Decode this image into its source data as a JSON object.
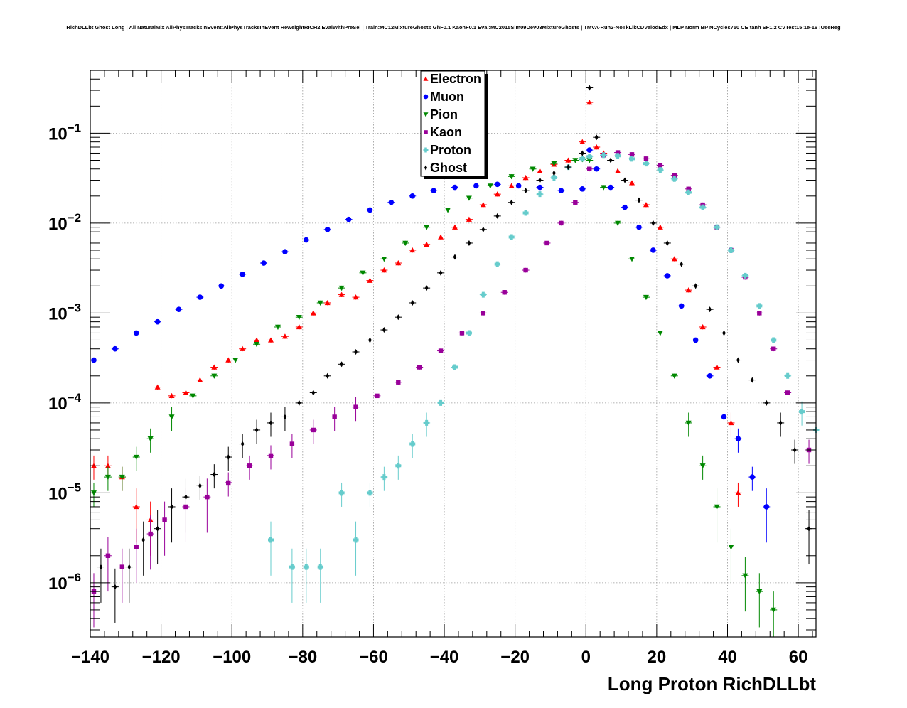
{
  "title": "RichDLLbt Ghost Long | All NaturalMix AllPhysTracksInEvent:AllPhysTracksInEvent ReweightRICH2 EvalWithPreSel | Train:MC12MixtureGhosts GhF0.1 KaonF0.1 Eval:MC2015Sim09Dev03MixtureGhosts | TMVA-Run2-NoTkLikCDVelodEdx | MLP Norm BP NCycles750 CE tanh SF1.2 CVTest15:1e-16 !UseReg",
  "chart_data": {
    "type": "scatter",
    "xlabel": "Long Proton RichDLLbt",
    "ylabel": "",
    "xlim": [
      -140,
      65
    ],
    "ylim": [
      2.5e-07,
      0.5
    ],
    "yscale": "log",
    "grid": true,
    "legend_position": "top-center",
    "x_ticks": [
      -140,
      -120,
      -100,
      -80,
      -60,
      -40,
      -20,
      0,
      20,
      40,
      60
    ],
    "x_tick_labels": [
      "−140",
      "−120",
      "−100",
      "−80",
      "−60",
      "−40",
      "−20",
      "0",
      "20",
      "40",
      "60"
    ],
    "y_ticks": [
      1e-06,
      1e-05,
      0.0001,
      0.001,
      0.01,
      0.1
    ],
    "y_tick_bases": [
      "10",
      "10",
      "10",
      "10",
      "10",
      "10"
    ],
    "y_tick_exponents": [
      "−6",
      "−5",
      "−4",
      "−3",
      "−2",
      "−1"
    ],
    "series": [
      {
        "name": "Electron",
        "color": "#ff0000",
        "marker": "triangle-up",
        "x": [
          -139,
          -135,
          -131,
          -127,
          -123,
          -121,
          -117,
          -113,
          -109,
          -105,
          -101,
          -97,
          -93,
          -89,
          -85,
          -81,
          -77,
          -73,
          -69,
          -65,
          -61,
          -57,
          -53,
          -49,
          -45,
          -41,
          -37,
          -33,
          -29,
          -25,
          -21,
          -17,
          -13,
          -9,
          -5,
          -1,
          1,
          3,
          5,
          9,
          13,
          17,
          21,
          25,
          29,
          33,
          37,
          41,
          43
        ],
        "y": [
          2e-05,
          2e-05,
          1.5e-05,
          7e-06,
          5e-06,
          0.00015,
          0.00012,
          0.00013,
          0.00018,
          0.00025,
          0.0003,
          0.0004,
          0.0005,
          0.0005,
          0.00055,
          0.0007,
          0.001,
          0.0013,
          0.0016,
          0.0015,
          0.0023,
          0.003,
          0.0036,
          0.005,
          0.0058,
          0.007,
          0.009,
          0.011,
          0.016,
          0.021,
          0.026,
          0.032,
          0.038,
          0.045,
          0.05,
          0.08,
          0.22,
          0.07,
          0.06,
          0.038,
          0.028,
          0.016,
          0.009,
          0.004,
          0.0018,
          0.0007,
          0.00025,
          6e-05,
          1e-05
        ]
      },
      {
        "name": "Muon",
        "color": "#0000ff",
        "marker": "circle",
        "x": [
          -139,
          -133,
          -127,
          -121,
          -115,
          -109,
          -103,
          -97,
          -91,
          -85,
          -79,
          -73,
          -67,
          -61,
          -55,
          -49,
          -43,
          -37,
          -31,
          -25,
          -19,
          -13,
          -7,
          -1,
          1,
          3,
          7,
          11,
          15,
          19,
          23,
          27,
          31,
          35,
          39,
          43,
          47,
          51
        ],
        "y": [
          0.0003,
          0.0004,
          0.0006,
          0.0008,
          0.0011,
          0.0015,
          0.002,
          0.0027,
          0.0036,
          0.0048,
          0.0065,
          0.0085,
          0.011,
          0.014,
          0.017,
          0.02,
          0.023,
          0.025,
          0.026,
          0.027,
          0.026,
          0.025,
          0.023,
          0.024,
          0.065,
          0.04,
          0.025,
          0.015,
          0.009,
          0.005,
          0.0026,
          0.0012,
          0.0005,
          0.0002,
          7e-05,
          4e-05,
          1.5e-05,
          7e-06
        ]
      },
      {
        "name": "Pion",
        "color": "#008800",
        "marker": "triangle-down",
        "x": [
          -139,
          -135,
          -131,
          -127,
          -123,
          -117,
          -111,
          -105,
          -99,
          -93,
          -87,
          -81,
          -75,
          -69,
          -63,
          -57,
          -51,
          -45,
          -39,
          -33,
          -27,
          -21,
          -15,
          -9,
          -3,
          -1,
          1,
          5,
          9,
          13,
          17,
          21,
          25,
          29,
          33,
          37,
          41,
          45,
          49,
          53
        ],
        "y": [
          1e-05,
          1.5e-05,
          1.5e-05,
          2.5e-05,
          4e-05,
          7e-05,
          0.00012,
          0.0002,
          0.0003,
          0.00045,
          0.0007,
          0.0009,
          0.0013,
          0.0019,
          0.0028,
          0.004,
          0.006,
          0.009,
          0.014,
          0.019,
          0.026,
          0.033,
          0.04,
          0.046,
          0.05,
          0.051,
          0.05,
          0.025,
          0.01,
          0.004,
          0.0015,
          0.0006,
          0.0002,
          6e-05,
          2e-05,
          7e-06,
          2.5e-06,
          1.2e-06,
          8e-07,
          5e-07
        ]
      },
      {
        "name": "Kaon",
        "color": "#990099",
        "marker": "square",
        "x": [
          -139,
          -135,
          -131,
          -127,
          -123,
          -119,
          -113,
          -107,
          -101,
          -95,
          -89,
          -83,
          -77,
          -71,
          -65,
          -59,
          -53,
          -47,
          -41,
          -35,
          -29,
          -23,
          -17,
          -11,
          -7,
          -3,
          1,
          5,
          9,
          13,
          17,
          21,
          25,
          29,
          33,
          37,
          41,
          45,
          49,
          53,
          57,
          63
        ],
        "y": [
          8e-07,
          2e-06,
          1.5e-06,
          2.5e-06,
          3.5e-06,
          5e-06,
          7e-06,
          9e-06,
          1.3e-05,
          2e-05,
          2.6e-05,
          3.5e-05,
          5e-05,
          7e-05,
          9e-05,
          0.00012,
          0.00017,
          0.00025,
          0.00038,
          0.0006,
          0.001,
          0.0017,
          0.003,
          0.006,
          0.01,
          0.017,
          0.04,
          0.057,
          0.061,
          0.058,
          0.052,
          0.044,
          0.034,
          0.024,
          0.016,
          0.009,
          0.005,
          0.0025,
          0.001,
          0.0004,
          0.00013,
          3e-05
        ]
      },
      {
        "name": "Proton",
        "color": "#66cccc",
        "marker": "cross",
        "x": [
          -89,
          -83,
          -79,
          -75,
          -69,
          -65,
          -61,
          -57,
          -53,
          -49,
          -45,
          -41,
          -37,
          -33,
          -29,
          -25,
          -21,
          -17,
          -13,
          -9,
          -5,
          -1,
          1,
          5,
          9,
          13,
          17,
          21,
          25,
          29,
          33,
          37,
          41,
          45,
          49,
          53,
          57,
          61,
          65
        ],
        "y": [
          3e-06,
          1.5e-06,
          1.5e-06,
          1.5e-06,
          1e-05,
          3e-06,
          1e-05,
          1.5e-05,
          2e-05,
          3.5e-05,
          6e-05,
          0.0001,
          0.00025,
          0.0006,
          0.0016,
          0.0035,
          0.007,
          0.013,
          0.021,
          0.032,
          0.042,
          0.052,
          0.055,
          0.057,
          0.056,
          0.052,
          0.046,
          0.039,
          0.031,
          0.022,
          0.015,
          0.009,
          0.005,
          0.0026,
          0.0012,
          0.0005,
          0.0002,
          8e-05,
          5e-05
        ]
      },
      {
        "name": "Ghost",
        "color": "#000000",
        "marker": "diamond",
        "x": [
          -137,
          -133,
          -129,
          -125,
          -121,
          -117,
          -113,
          -109,
          -105,
          -101,
          -97,
          -93,
          -89,
          -85,
          -81,
          -77,
          -73,
          -69,
          -65,
          -61,
          -57,
          -53,
          -49,
          -45,
          -41,
          -37,
          -33,
          -29,
          -25,
          -21,
          -17,
          -13,
          -9,
          -5,
          -1,
          1,
          3,
          7,
          11,
          15,
          19,
          23,
          27,
          31,
          35,
          39,
          43,
          47,
          51,
          55,
          59,
          63
        ],
        "y": [
          1.5e-06,
          9e-07,
          1.5e-06,
          3e-06,
          4e-06,
          7e-06,
          9e-06,
          1.2e-05,
          1.6e-05,
          2.5e-05,
          3.5e-05,
          5e-05,
          6e-05,
          7e-05,
          0.0001,
          0.00013,
          0.0002,
          0.00027,
          0.00037,
          0.0005,
          0.00065,
          0.0009,
          0.0013,
          0.0019,
          0.0028,
          0.0042,
          0.006,
          0.0085,
          0.012,
          0.017,
          0.023,
          0.03,
          0.036,
          0.042,
          0.06,
          0.32,
          0.09,
          0.05,
          0.03,
          0.018,
          0.01,
          0.006,
          0.0035,
          0.002,
          0.0011,
          0.0006,
          0.0003,
          0.00018,
          0.0001,
          6e-05,
          3e-05,
          4e-06
        ]
      }
    ]
  }
}
